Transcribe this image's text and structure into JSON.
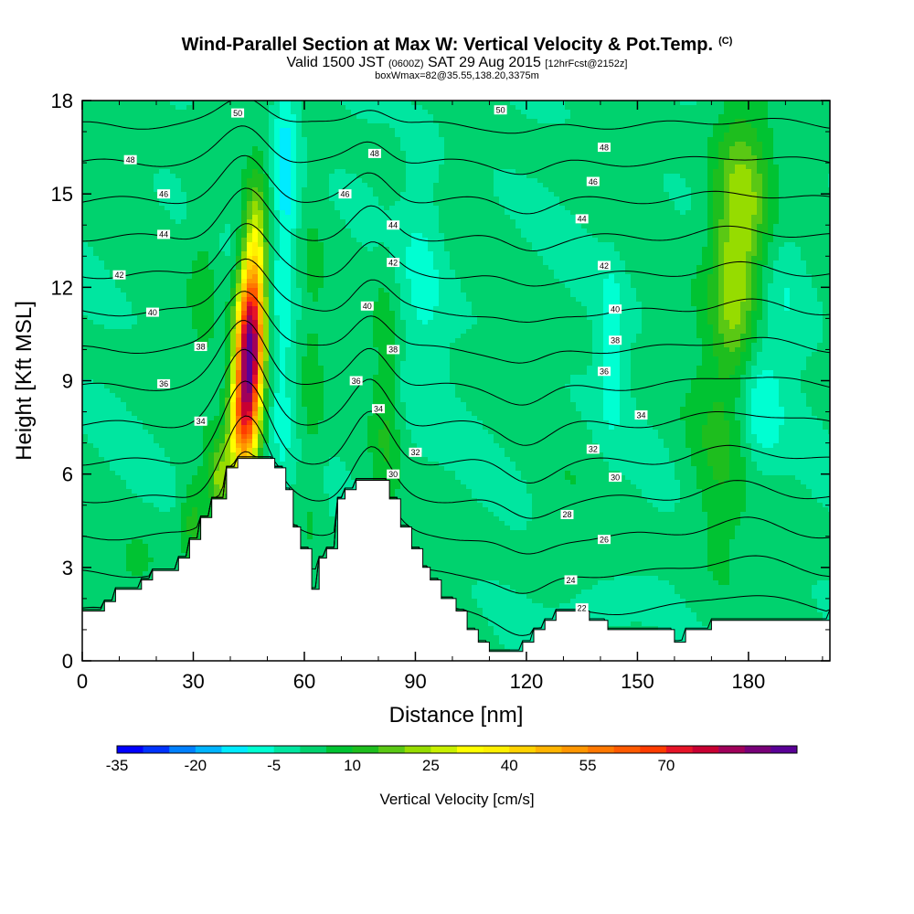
{
  "header": {
    "title": "Wind-Parallel Section at Max W: Vertical Velocity & Pot.Temp.",
    "copyright": "(C)",
    "subtitle_a": "Valid 1500 JST",
    "subtitle_z": "(0600Z)",
    "subtitle_b": "SAT 29 Aug 2015",
    "subtitle_fcst": "[12hrFcst@2152z]",
    "box_info": "boxWmax=82@35.55,138.20,3375m"
  },
  "chart_data": {
    "type": "heatmap",
    "title": "Wind-Parallel Section at Max W: Vertical Velocity & Pot.Temp.",
    "xlabel": "Distance [nm]",
    "ylabel": "Height [Kft MSL]",
    "xlim": [
      0,
      202
    ],
    "ylim": [
      0,
      18
    ],
    "x_ticks": [
      0,
      30,
      60,
      90,
      120,
      150,
      180
    ],
    "x_tick_labels": [
      "0",
      "30",
      "60",
      "90",
      "120",
      "150",
      "180"
    ],
    "y_ticks": [
      0,
      3,
      6,
      9,
      12,
      15,
      18
    ],
    "y_tick_labels": [
      "0",
      "3",
      "6",
      "9",
      "12",
      "15",
      "18"
    ],
    "grid": false,
    "colorbar": {
      "title": "Vertical Velocity [cm/s]",
      "min": -35,
      "step": 5,
      "colors": [
        "#0000ff",
        "#0033ff",
        "#0080ff",
        "#00b4ff",
        "#00ebff",
        "#00ffd2",
        "#00e6a0",
        "#00d26e",
        "#00c332",
        "#1ebe1e",
        "#5ac814",
        "#96dc00",
        "#c8f000",
        "#ffff00",
        "#fff000",
        "#ffd200",
        "#ffb400",
        "#ff9600",
        "#ff7800",
        "#ff5a00",
        "#ff3c00",
        "#e61428",
        "#c80032",
        "#a0005a",
        "#780078",
        "#5a0096"
      ],
      "tick_values": [
        -35,
        -20,
        -5,
        10,
        25,
        40,
        55,
        70
      ],
      "tick_labels": [
        "-35",
        "-20",
        "-5",
        "10",
        "25",
        "40",
        "55",
        "70"
      ]
    },
    "terrain": [
      [
        0,
        1.6
      ],
      [
        6,
        1.6
      ],
      [
        6,
        1.9
      ],
      [
        9,
        1.9
      ],
      [
        9,
        2.3
      ],
      [
        16,
        2.3
      ],
      [
        16,
        2.6
      ],
      [
        19,
        2.6
      ],
      [
        19,
        2.9
      ],
      [
        26,
        2.9
      ],
      [
        26,
        3.3
      ],
      [
        29,
        3.3
      ],
      [
        29,
        3.9
      ],
      [
        32,
        3.9
      ],
      [
        32,
        4.6
      ],
      [
        35,
        4.6
      ],
      [
        35,
        5.2
      ],
      [
        39,
        5.2
      ],
      [
        39,
        6.2
      ],
      [
        42,
        6.2
      ],
      [
        42,
        6.5
      ],
      [
        52,
        6.5
      ],
      [
        52,
        6.2
      ],
      [
        55,
        6.2
      ],
      [
        55,
        5.5
      ],
      [
        57,
        5.5
      ],
      [
        57,
        4.3
      ],
      [
        59,
        4.3
      ],
      [
        59,
        3.6
      ],
      [
        62,
        3.6
      ],
      [
        62,
        2.3
      ],
      [
        64,
        2.3
      ],
      [
        64,
        3.3
      ],
      [
        66,
        3.3
      ],
      [
        66,
        3.6
      ],
      [
        69,
        3.6
      ],
      [
        69,
        5.2
      ],
      [
        71,
        5.2
      ],
      [
        71,
        5.5
      ],
      [
        74,
        5.5
      ],
      [
        74,
        5.8
      ],
      [
        83,
        5.8
      ],
      [
        83,
        5.2
      ],
      [
        86,
        5.2
      ],
      [
        86,
        4.3
      ],
      [
        89,
        4.3
      ],
      [
        89,
        3.6
      ],
      [
        92,
        3.6
      ],
      [
        92,
        3.0
      ],
      [
        94,
        3.0
      ],
      [
        94,
        2.6
      ],
      [
        97,
        2.6
      ],
      [
        97,
        2.0
      ],
      [
        101,
        2.0
      ],
      [
        101,
        1.6
      ],
      [
        104,
        1.6
      ],
      [
        104,
        1.0
      ],
      [
        107,
        1.0
      ],
      [
        107,
        0.6
      ],
      [
        110,
        0.6
      ],
      [
        110,
        0.3
      ],
      [
        113,
        0.3
      ],
      [
        113,
        0.3
      ],
      [
        119,
        0.3
      ],
      [
        119,
        0.6
      ],
      [
        122,
        0.6
      ],
      [
        122,
        1.0
      ],
      [
        125,
        1.0
      ],
      [
        125,
        1.3
      ],
      [
        128,
        1.3
      ],
      [
        128,
        1.6
      ],
      [
        137,
        1.6
      ],
      [
        137,
        1.3
      ],
      [
        142,
        1.3
      ],
      [
        142,
        1.0
      ],
      [
        160,
        1.0
      ],
      [
        160,
        0.6
      ],
      [
        163,
        0.6
      ],
      [
        163,
        1.0
      ],
      [
        170,
        1.0
      ],
      [
        170,
        1.3
      ],
      [
        202,
        1.3
      ],
      [
        202,
        1.6
      ]
    ],
    "velocity_features": [
      {
        "x": 45,
        "y": 9.8,
        "sx": 2.5,
        "sy": 1.8,
        "w": 82
      },
      {
        "x": 47,
        "y": 12.5,
        "sx": 2.2,
        "sy": 2.0,
        "w": 30
      },
      {
        "x": 43,
        "y": 7.5,
        "sx": 2.6,
        "sy": 1.2,
        "w": 38
      },
      {
        "x": 37,
        "y": 5.8,
        "sx": 2.0,
        "sy": 0.8,
        "w": 18
      },
      {
        "x": 30,
        "y": 4.5,
        "sx": 2.5,
        "sy": 0.9,
        "w": 12
      },
      {
        "x": 178,
        "y": 14.5,
        "sx": 5.5,
        "sy": 2.3,
        "w": 22
      },
      {
        "x": 176,
        "y": 11.5,
        "sx": 4.0,
        "sy": 1.8,
        "w": 12
      },
      {
        "x": 172,
        "y": 6.5,
        "sx": 6.0,
        "sy": 3.0,
        "w": 8
      },
      {
        "x": 55,
        "y": 15.5,
        "sx": 2.5,
        "sy": 2.5,
        "w": -15
      },
      {
        "x": 54,
        "y": 9.0,
        "sx": 2.0,
        "sy": 2.5,
        "w": -7
      },
      {
        "x": 82,
        "y": 8.5,
        "sx": 2.5,
        "sy": 3.0,
        "w": 8
      },
      {
        "x": 62,
        "y": 8.0,
        "sx": 2.5,
        "sy": 4.0,
        "w": 6
      },
      {
        "x": 92,
        "y": 12.0,
        "sx": 4.0,
        "sy": 3.5,
        "w": -6
      },
      {
        "x": 143,
        "y": 10.0,
        "sx": 2.5,
        "sy": 1.8,
        "w": -10
      },
      {
        "x": 183,
        "y": 8.0,
        "sx": 4.0,
        "sy": 1.5,
        "w": -10
      },
      {
        "x": 190,
        "y": 12.0,
        "sx": 5.0,
        "sy": 2.0,
        "w": -5
      },
      {
        "x": 33,
        "y": 13.0,
        "sx": 3.0,
        "sy": 3.0,
        "w": 6
      },
      {
        "x": 15,
        "y": 3.0,
        "sx": 6.0,
        "sy": 1.0,
        "w": 5
      },
      {
        "x": 130,
        "y": 4.0,
        "sx": 5.0,
        "sy": 1.5,
        "w": 3
      },
      {
        "x": 140,
        "y": 1.7,
        "sx": 8.0,
        "sy": 0.5,
        "w": -7
      }
    ],
    "isentropes": [
      22,
      24,
      26,
      28,
      30,
      32,
      34,
      36,
      38,
      40,
      42,
      44,
      46,
      48,
      50
    ],
    "isentrope_labels": [
      {
        "v": "50",
        "x": 42,
        "y": 17.6
      },
      {
        "v": "50",
        "x": 113,
        "y": 17.7
      },
      {
        "v": "48",
        "x": 13,
        "y": 16.1
      },
      {
        "v": "48",
        "x": 79,
        "y": 16.3
      },
      {
        "v": "48",
        "x": 141,
        "y": 16.5
      },
      {
        "v": "46",
        "x": 22,
        "y": 15.0
      },
      {
        "v": "46",
        "x": 71,
        "y": 15.0
      },
      {
        "v": "46",
        "x": 138,
        "y": 15.4
      },
      {
        "v": "44",
        "x": 22,
        "y": 13.7
      },
      {
        "v": "44",
        "x": 84,
        "y": 14.0
      },
      {
        "v": "44",
        "x": 135,
        "y": 14.2
      },
      {
        "v": "42",
        "x": 10,
        "y": 12.4
      },
      {
        "v": "42",
        "x": 84,
        "y": 12.8
      },
      {
        "v": "42",
        "x": 141,
        "y": 12.7
      },
      {
        "v": "40",
        "x": 19,
        "y": 11.2
      },
      {
        "v": "40",
        "x": 77,
        "y": 11.4
      },
      {
        "v": "40",
        "x": 144,
        "y": 11.3
      },
      {
        "v": "38",
        "x": 32,
        "y": 10.1
      },
      {
        "v": "38",
        "x": 84,
        "y": 10.0
      },
      {
        "v": "38",
        "x": 144,
        "y": 10.3
      },
      {
        "v": "36",
        "x": 22,
        "y": 8.9
      },
      {
        "v": "36",
        "x": 74,
        "y": 9.0
      },
      {
        "v": "36",
        "x": 141,
        "y": 9.3
      },
      {
        "v": "34",
        "x": 32,
        "y": 7.7
      },
      {
        "v": "34",
        "x": 80,
        "y": 8.1
      },
      {
        "v": "34",
        "x": 151,
        "y": 7.9
      },
      {
        "v": "32",
        "x": 90,
        "y": 6.7
      },
      {
        "v": "32",
        "x": 138,
        "y": 6.8
      },
      {
        "v": "30",
        "x": 84,
        "y": 6.0
      },
      {
        "v": "30",
        "x": 144,
        "y": 5.9
      },
      {
        "v": "28",
        "x": 131,
        "y": 4.7
      },
      {
        "v": "26",
        "x": 141,
        "y": 3.9
      },
      {
        "v": "24",
        "x": 132,
        "y": 2.6
      },
      {
        "v": "22",
        "x": 135,
        "y": 1.7
      }
    ]
  }
}
